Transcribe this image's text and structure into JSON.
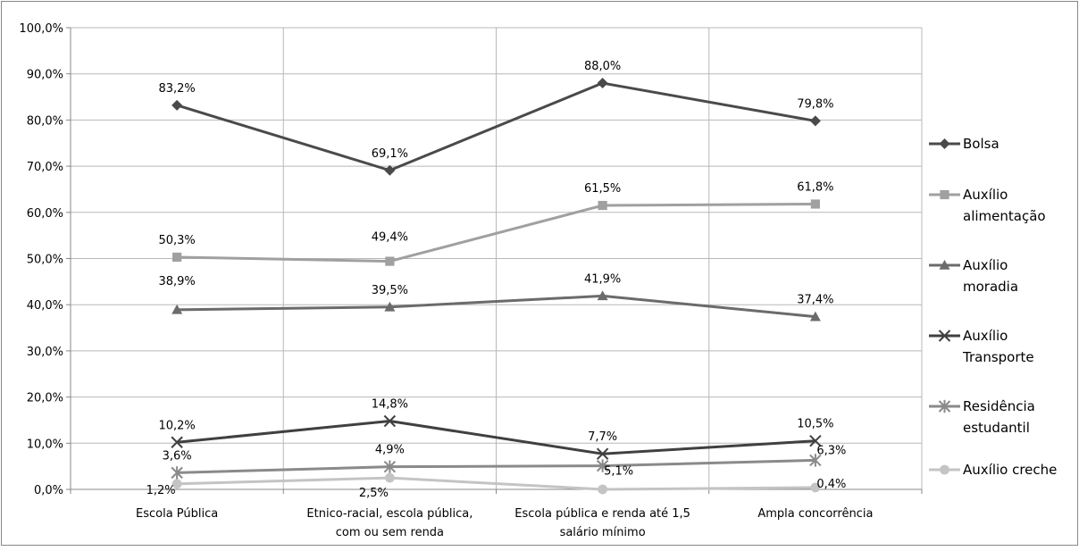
{
  "chart_data": {
    "type": "line",
    "title": "",
    "xlabel": "",
    "ylabel": "",
    "categories": [
      [
        "Escola Pública"
      ],
      [
        "Etnico-racial, escola pública,",
        "com ou sem renda"
      ],
      [
        "Escola pública e renda até 1,5",
        "salário mínimo"
      ],
      [
        "Ampla concorrência"
      ]
    ],
    "ylim": [
      0,
      100
    ],
    "yticks": [
      0,
      10,
      20,
      30,
      40,
      50,
      60,
      70,
      80,
      90,
      100
    ],
    "ytick_labels": [
      "0,0%",
      "10,0%",
      "20,0%",
      "30,0%",
      "40,0%",
      "50,0%",
      "60,0%",
      "70,0%",
      "80,0%",
      "90,0%",
      "100,0%"
    ],
    "grid": true,
    "legend_position": "right",
    "series": [
      {
        "name": [
          "Bolsa"
        ],
        "values": [
          83.2,
          69.1,
          88.0,
          79.8
        ],
        "labels": [
          "83,2%",
          "69,1%",
          "88,0%",
          "79,8%"
        ],
        "color": "#4a4a4a",
        "marker": "diamond"
      },
      {
        "name": [
          "Auxílio",
          "alimentação"
        ],
        "values": [
          50.3,
          49.4,
          61.5,
          61.8
        ],
        "labels": [
          "50,3%",
          "49,4%",
          "61,5%",
          "61,8%"
        ],
        "color": "#a0a0a0",
        "marker": "square"
      },
      {
        "name": [
          "Auxílio",
          "moradia"
        ],
        "values": [
          38.9,
          39.5,
          41.9,
          37.4
        ],
        "labels": [
          "38,9%",
          "39,5%",
          "41,9%",
          "37,4%"
        ],
        "color": "#6b6b6b",
        "marker": "triangle"
      },
      {
        "name": [
          "Auxílio",
          "Transporte"
        ],
        "values": [
          10.2,
          14.8,
          7.7,
          10.5
        ],
        "labels": [
          "10,2%",
          "14,8%",
          "7,7%",
          "10,5%"
        ],
        "color": "#404040",
        "marker": "x"
      },
      {
        "name": [
          "Residência",
          "estudantil"
        ],
        "values": [
          3.6,
          4.9,
          5.1,
          6.3
        ],
        "labels": [
          "3,6%",
          "4,9%",
          "5,1%",
          "6,3%"
        ],
        "color": "#8a8a8a",
        "marker": "star"
      },
      {
        "name": [
          "Auxílio creche"
        ],
        "values": [
          1.2,
          2.5,
          0.0,
          0.4
        ],
        "labels": [
          "1,2%",
          "2,5%",
          "",
          "0,4%"
        ],
        "color": "#c4c4c4",
        "marker": "circle"
      }
    ]
  }
}
